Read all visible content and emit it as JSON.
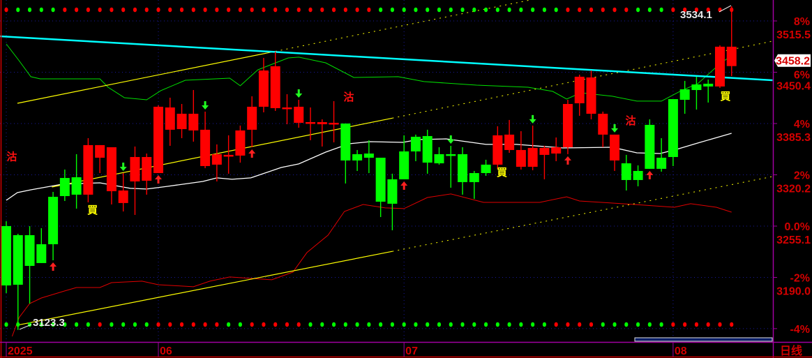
{
  "chart_data": {
    "type": "candlestick",
    "period_label": "日线",
    "colors": {
      "up": "#00ff00",
      "down": "#ff0000",
      "axis_text": "#d40000",
      "axis_line": "#a000a0",
      "grid": "#1a1aa0",
      "ma": "#ffffff",
      "upper_band": "#00e000",
      "lower_band": "#e00000",
      "trend_cyan": "#00ffff",
      "channel": "#ffff00"
    },
    "x_labels": [
      {
        "label": "2025",
        "index": 0
      },
      {
        "label": "06",
        "index": 13
      },
      {
        "label": "07",
        "index": 34
      },
      {
        "label": "08",
        "index": 57
      }
    ],
    "y_ticks": [
      {
        "pct": "8%",
        "price": "3515.5",
        "value": 3515.5
      },
      {
        "pct": "6%",
        "price": "3450.4",
        "value": 3450.4
      },
      {
        "pct": "4%",
        "price": "3385.3",
        "value": 3385.3
      },
      {
        "pct": "2%",
        "price": "3320.2",
        "value": 3320.2
      },
      {
        "pct": "0.0%",
        "price": "3255.1",
        "value": 3255.1
      },
      {
        "pct": "-2%",
        "price": "3190.0",
        "value": 3190.0
      },
      {
        "pct": "-4%",
        "price": "",
        "value": 3125.0
      }
    ],
    "ylim": [
      3105,
      3542
    ],
    "last_price": "3458.2",
    "high_label": "3534.1",
    "low_label": "3123.3",
    "candles": [
      [
        3179.8,
        3261.3,
        3170.1,
        3255.1
      ],
      [
        3180.7,
        3245.4,
        3123.3,
        3243.6
      ],
      [
        3204.6,
        3255.1,
        3156.8,
        3243.6
      ],
      [
        3208.2,
        3252.5,
        3208.2,
        3232.1
      ],
      [
        3232.1,
        3298.5,
        3211.7,
        3292.3
      ],
      [
        3293.2,
        3326.9,
        3287.0,
        3316.2
      ],
      [
        3295.0,
        3346.4,
        3277.3,
        3317.1
      ],
      [
        3357.9,
        3366.7,
        3285.2,
        3295.0
      ],
      [
        3357.9,
        3357.9,
        3322.4,
        3341.9
      ],
      [
        3355.2,
        3355.2,
        3282.6,
        3299.4
      ],
      [
        3300.3,
        3322.4,
        3273.7,
        3284.4
      ],
      [
        3342.8,
        3356.1,
        3269.3,
        3311.8
      ],
      [
        3342.8,
        3347.2,
        3295.0,
        3312.7
      ],
      [
        3406.6,
        3408.4,
        3322.4,
        3322.4
      ],
      [
        3405.7,
        3418.1,
        3357.0,
        3377.4
      ],
      [
        3397.7,
        3410.1,
        3366.7,
        3378.2
      ],
      [
        3397.7,
        3427.8,
        3362.3,
        3376.5
      ],
      [
        3377.4,
        3400.4,
        3328.6,
        3331.3
      ],
      [
        3346.4,
        3358.8,
        3311.8,
        3333.1
      ],
      [
        3345.5,
        3370.3,
        3321.6,
        3344.6
      ],
      [
        3376.5,
        3382.7,
        3335.7,
        3344.6
      ],
      [
        3406.6,
        3419.9,
        3355.2,
        3377.4
      ],
      [
        3452.6,
        3468.6,
        3399.5,
        3406.6
      ],
      [
        3458.0,
        3476.6,
        3401.3,
        3404.8
      ],
      [
        3405.7,
        3422.5,
        3384.4,
        3405.3
      ],
      [
        3406.6,
        3415.4,
        3380.0,
        3386.2
      ],
      [
        3387.1,
        3405.7,
        3364.1,
        3386.6
      ],
      [
        3387.1,
        3390.6,
        3356.1,
        3384.4
      ],
      [
        3386.2,
        3413.7,
        3361.4,
        3384.4
      ],
      [
        3338.4,
        3385.3,
        3309.2,
        3385.3
      ],
      [
        3338.4,
        3351.7,
        3325.1,
        3346.4
      ],
      [
        3341.9,
        3364.1,
        3322.4,
        3347.2
      ],
      [
        3286.1,
        3341.9,
        3266.6,
        3341.9
      ],
      [
        3283.5,
        3321.6,
        3249.8,
        3314.5
      ],
      [
        3314.5,
        3370.3,
        3314.5,
        3349.9
      ],
      [
        3349.9,
        3371.2,
        3337.5,
        3368.5
      ],
      [
        3335.7,
        3377.4,
        3321.6,
        3369.4
      ],
      [
        3334.8,
        3355.2,
        3333.1,
        3346.4
      ],
      [
        3345.5,
        3357.0,
        3303.8,
        3346.4
      ],
      [
        3310.9,
        3355.2,
        3295.0,
        3346.4
      ],
      [
        3310.9,
        3325.1,
        3289.7,
        3322.4
      ],
      [
        3322.4,
        3339.3,
        3318.9,
        3333.1
      ],
      [
        3370.3,
        3381.8,
        3327.8,
        3333.1
      ],
      [
        3371.2,
        3389.8,
        3348.1,
        3351.7
      ],
      [
        3351.7,
        3375.6,
        3326.9,
        3330.4
      ],
      [
        3354.3,
        3382.7,
        3326.0,
        3330.4
      ],
      [
        3354.3,
        3357.0,
        3314.5,
        3345.5
      ],
      [
        3355.2,
        3367.6,
        3337.5,
        3347.2
      ],
      [
        3410.1,
        3415.4,
        3346.4,
        3355.2
      ],
      [
        3444.7,
        3447.3,
        3395.1,
        3411.0
      ],
      [
        3443.8,
        3452.6,
        3390.6,
        3397.7
      ],
      [
        3397.7,
        3400.4,
        3355.2,
        3371.2
      ],
      [
        3371.2,
        3371.2,
        3325.1,
        3338.4
      ],
      [
        3313.6,
        3345.5,
        3300.3,
        3334.8
      ],
      [
        3313.6,
        3332.2,
        3305.6,
        3325.1
      ],
      [
        3327.8,
        3390.6,
        3327.8,
        3383.6
      ],
      [
        3327.8,
        3366.7,
        3324.2,
        3341.9
      ],
      [
        3342.8,
        3416.3,
        3331.3,
        3416.3
      ],
      [
        3415.4,
        3439.4,
        3397.7,
        3428.7
      ],
      [
        3427.8,
        3444.7,
        3403.0,
        3434.9
      ],
      [
        3432.3,
        3441.1,
        3411.9,
        3435.8
      ],
      [
        3482.8,
        3484.5,
        3430.5,
        3432.3
      ],
      [
        3482.8,
        3534.1,
        3445.6,
        3458.2
      ]
    ],
    "ma_line": [
      [
        0,
        3287.9
      ],
      [
        0.95,
        3297.6
      ],
      [
        2.1,
        3301.2
      ],
      [
        4.8,
        3308.3
      ],
      [
        8,
        3310.0
      ],
      [
        10.6,
        3303.0
      ],
      [
        12,
        3302.1
      ],
      [
        13.8,
        3305.6
      ],
      [
        16.8,
        3311.8
      ],
      [
        18,
        3316.3
      ],
      [
        19.3,
        3314.5
      ],
      [
        20.9,
        3316.3
      ],
      [
        23.5,
        3329.5
      ],
      [
        25,
        3334.0
      ],
      [
        27.3,
        3349.0
      ],
      [
        29.3,
        3359.6
      ],
      [
        31.1,
        3362.3
      ],
      [
        33.9,
        3361.4
      ],
      [
        35.2,
        3364.9
      ],
      [
        37.6,
        3365.8
      ],
      [
        41,
        3358.8
      ],
      [
        43.6,
        3358.8
      ],
      [
        47.6,
        3354.3
      ],
      [
        51.8,
        3355.2
      ],
      [
        53.9,
        3348.1
      ],
      [
        55.9,
        3347.2
      ],
      [
        57.5,
        3353.4
      ],
      [
        59.1,
        3360.5
      ],
      [
        62,
        3372.9
      ]
    ],
    "upper_band": [
      [
        0,
        3486.3
      ],
      [
        1.1,
        3465.0
      ],
      [
        2.1,
        3444.7
      ],
      [
        2.9,
        3442.0
      ],
      [
        8,
        3442.0
      ],
      [
        8.7,
        3431.4
      ],
      [
        10.1,
        3418.1
      ],
      [
        12,
        3415.4
      ],
      [
        13.2,
        3427.0
      ],
      [
        15.3,
        3440.2
      ],
      [
        19.1,
        3442.9
      ],
      [
        20,
        3433.2
      ],
      [
        21.5,
        3453.5
      ],
      [
        24.1,
        3468.6
      ],
      [
        25,
        3469.5
      ],
      [
        27.3,
        3462.4
      ],
      [
        29.7,
        3443.8
      ],
      [
        33.5,
        3444.7
      ],
      [
        35.7,
        3438.5
      ],
      [
        40.2,
        3434.0
      ],
      [
        44.6,
        3431.4
      ],
      [
        46.7,
        3426.1
      ],
      [
        47.9,
        3416.3
      ],
      [
        49.1,
        3424.3
      ],
      [
        51.8,
        3419.9
      ],
      [
        53.9,
        3413.7
      ],
      [
        56,
        3413.7
      ],
      [
        57.7,
        3427.0
      ],
      [
        59.1,
        3435.8
      ],
      [
        61.1,
        3462.4
      ],
      [
        62,
        3471.2
      ]
    ],
    "lower_band": [
      [
        0.5,
        3115.2
      ],
      [
        1.1,
        3139.1
      ],
      [
        2,
        3156.8
      ],
      [
        3,
        3163.9
      ],
      [
        5,
        3172.8
      ],
      [
        6,
        3177.2
      ],
      [
        8,
        3177.2
      ],
      [
        9,
        3183.4
      ],
      [
        11.6,
        3185.2
      ],
      [
        13,
        3180.7
      ],
      [
        16,
        3178.1
      ],
      [
        17.4,
        3185.2
      ],
      [
        19.1,
        3190.5
      ],
      [
        22.7,
        3187.0
      ],
      [
        24.5,
        3196.7
      ],
      [
        25.7,
        3221.5
      ],
      [
        27.5,
        3243.6
      ],
      [
        28.9,
        3273.7
      ],
      [
        30.5,
        3282.6
      ],
      [
        32.4,
        3278.2
      ],
      [
        34,
        3277.3
      ],
      [
        36,
        3291.4
      ],
      [
        38,
        3295.9
      ],
      [
        40.8,
        3285.2
      ],
      [
        45.6,
        3285.2
      ],
      [
        47.9,
        3292.3
      ],
      [
        49,
        3287.0
      ],
      [
        53.7,
        3282.6
      ],
      [
        57.1,
        3279.0
      ],
      [
        58.5,
        3283.5
      ],
      [
        60.7,
        3279.0
      ],
      [
        62,
        3272.8
      ]
    ],
    "trend_cyan": [
      [
        -0.54,
        3496.0
      ],
      [
        65.5,
        3440.2
      ]
    ],
    "channel_lines": [
      {
        "from": [
          0.95,
          3411.0
        ],
        "to": [
          44.8,
          3542.1
        ],
        "solid_until": 23
      },
      {
        "from": [
          3.9,
          3304.7
        ],
        "to": [
          65.5,
          3489.8
        ],
        "solid_until": 33
      },
      {
        "from": [
          0.95,
          3129.4
        ],
        "to": [
          65.5,
          3318.0
        ],
        "solid_until": 33
      }
    ],
    "top_dots": "RGGGGRRRRRRRRRRRRRRRRRRRRRRRRRRRGGGGGGGGGGGGGGGGRRRRRRGGGRRRRRR",
    "bottom_dots": "GGGGGGGGRGGGGRRRRRRGGRRRRRGGGGGGGGGGGGGGGGGGGGGRRRRGGGGGGRRRRRR",
    "buy_arrows": [
      4,
      13,
      21,
      34,
      48,
      55
    ],
    "sell_arrows": [
      10,
      17,
      25,
      38,
      45,
      52
    ],
    "sell_labels": [
      {
        "text": "沽",
        "index": 0.5,
        "price": 3344.0
      },
      {
        "text": "沽",
        "index": 29.3,
        "price": 3419.9
      },
      {
        "text": "沽",
        "index": 53.4,
        "price": 3389.8
      }
    ],
    "buy_labels": [
      {
        "text": "買",
        "index": 7.4,
        "price": 3276.4
      },
      {
        "text": "買",
        "index": 42.4,
        "price": 3324.2
      },
      {
        "text": "買",
        "index": 61.5,
        "price": 3420.8
      }
    ]
  }
}
